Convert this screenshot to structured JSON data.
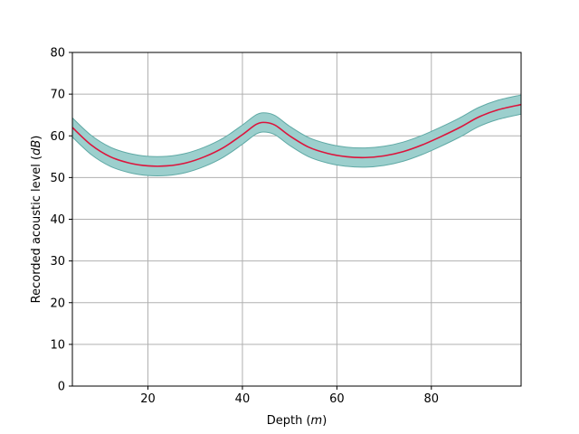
{
  "chart_data": {
    "type": "line",
    "title": "",
    "xlabel": "Depth",
    "xlabel_unit": "m",
    "ylabel": "Recorded acoustic level",
    "ylabel_unit": "dB",
    "xlim": [
      4,
      99
    ],
    "ylim": [
      0,
      80
    ],
    "xticks": [
      20,
      40,
      60,
      80
    ],
    "yticks": [
      0,
      10,
      20,
      30,
      40,
      50,
      60,
      70,
      80
    ],
    "grid": true,
    "legend": "none",
    "x": [
      4,
      8,
      12,
      16,
      20,
      24,
      28,
      32,
      36,
      40,
      43,
      45,
      47,
      50,
      54,
      58,
      62,
      66,
      70,
      74,
      78,
      82,
      86,
      90,
      94,
      99
    ],
    "series": [
      {
        "values": [
          62.0,
          57.8,
          55.0,
          53.5,
          52.8,
          52.8,
          53.5,
          55.0,
          57.2,
          60.3,
          62.8,
          63.2,
          62.5,
          60.0,
          57.3,
          55.8,
          55.0,
          54.8,
          55.2,
          56.2,
          57.8,
          59.8,
          62.0,
          64.5,
          66.2,
          67.5
        ],
        "lower": [
          59.7,
          55.5,
          52.7,
          51.2,
          50.5,
          50.5,
          51.2,
          52.7,
          54.9,
          58.0,
          60.5,
          60.9,
          60.2,
          57.7,
          55.0,
          53.5,
          52.7,
          52.5,
          52.9,
          53.9,
          55.5,
          57.5,
          59.7,
          62.2,
          63.9,
          65.2
        ],
        "upper": [
          64.3,
          60.1,
          57.3,
          55.8,
          55.1,
          55.1,
          55.8,
          57.3,
          59.5,
          62.6,
          65.1,
          65.5,
          64.8,
          62.3,
          59.6,
          58.1,
          57.3,
          57.1,
          57.5,
          58.5,
          60.1,
          62.1,
          64.3,
          66.8,
          68.5,
          69.8
        ]
      }
    ],
    "colors": {
      "line": "#dc143c",
      "band_fill": "#9ccfcd",
      "band_edge": "#5fa9a5"
    }
  }
}
